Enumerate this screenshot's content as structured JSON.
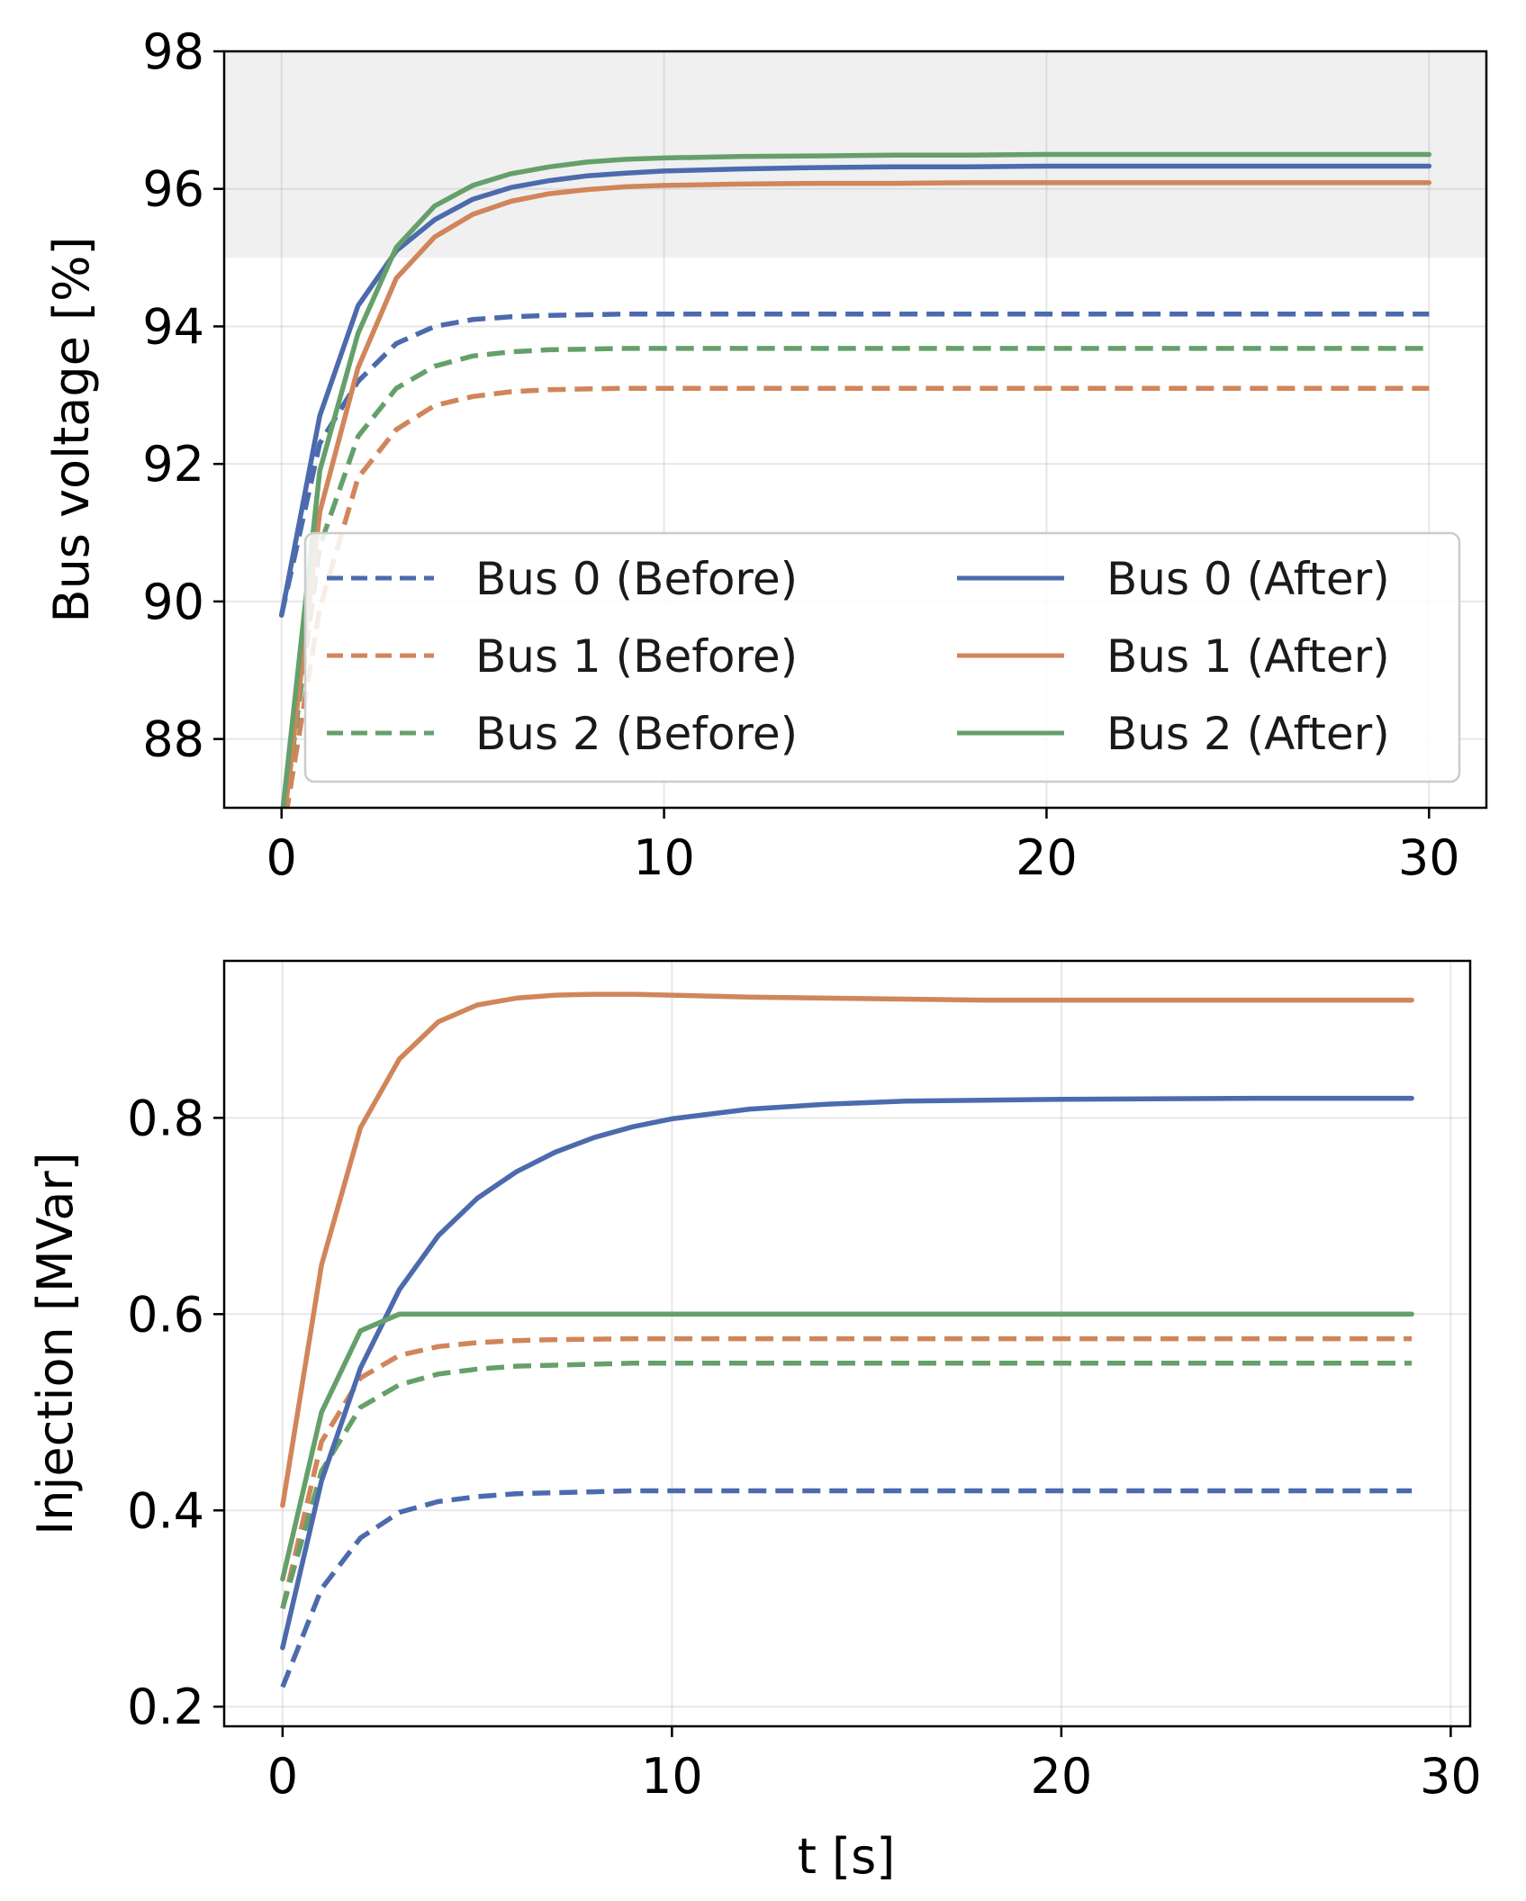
{
  "chart_data": [
    {
      "type": "line",
      "xlabel": "",
      "ylabel": "Bus voltage [%]",
      "xlim": [
        -1.5,
        31.5
      ],
      "ylim": [
        87,
        98
      ],
      "xticks": [
        "0",
        "10",
        "20",
        "30"
      ],
      "yticks": [
        "88",
        "90",
        "92",
        "94",
        "96",
        "98"
      ],
      "grid": true,
      "shaded_band": {
        "from": 95,
        "to": 98,
        "color": "#ebebeb"
      },
      "legend": {
        "placement": "lower-right",
        "columns": 2
      },
      "x": [
        0,
        1,
        2,
        3,
        4,
        5,
        6,
        7,
        8,
        9,
        10,
        12,
        14,
        16,
        18,
        20,
        25,
        30
      ],
      "series": [
        {
          "name": "Bus 0 (Before)",
          "style": "dashed",
          "color": "#4c6aad",
          "values": [
            89.8,
            92.3,
            93.2,
            93.75,
            94.0,
            94.1,
            94.14,
            94.16,
            94.17,
            94.18,
            94.18,
            94.18,
            94.18,
            94.18,
            94.18,
            94.18,
            94.18,
            94.18
          ]
        },
        {
          "name": "Bus 1 (Before)",
          "style": "dashed",
          "color": "#d1855a",
          "values": [
            86.5,
            89.9,
            91.8,
            92.5,
            92.85,
            92.98,
            93.05,
            93.08,
            93.09,
            93.1,
            93.1,
            93.1,
            93.1,
            93.1,
            93.1,
            93.1,
            93.1,
            93.1
          ]
        },
        {
          "name": "Bus 2 (Before)",
          "style": "dashed",
          "color": "#65a06a",
          "values": [
            86.6,
            90.8,
            92.4,
            93.1,
            93.42,
            93.57,
            93.63,
            93.66,
            93.67,
            93.68,
            93.68,
            93.68,
            93.68,
            93.68,
            93.68,
            93.68,
            93.68,
            93.68
          ]
        },
        {
          "name": "Bus 0 (After)",
          "style": "solid",
          "color": "#4c6aad",
          "values": [
            89.8,
            92.7,
            94.3,
            95.1,
            95.55,
            95.85,
            96.02,
            96.12,
            96.19,
            96.23,
            96.26,
            96.29,
            96.31,
            96.32,
            96.32,
            96.33,
            96.33,
            96.33
          ]
        },
        {
          "name": "Bus 1 (After)",
          "style": "solid",
          "color": "#d1855a",
          "values": [
            86.5,
            91.3,
            93.4,
            94.7,
            95.3,
            95.63,
            95.82,
            95.93,
            95.99,
            96.03,
            96.05,
            96.07,
            96.08,
            96.08,
            96.09,
            96.09,
            96.09,
            96.09
          ]
        },
        {
          "name": "Bus 2 (After)",
          "style": "solid",
          "color": "#65a06a",
          "values": [
            86.8,
            91.9,
            93.9,
            95.15,
            95.75,
            96.05,
            96.22,
            96.32,
            96.39,
            96.43,
            96.45,
            96.47,
            96.48,
            96.49,
            96.49,
            96.5,
            96.5,
            96.5
          ]
        }
      ]
    },
    {
      "type": "line",
      "xlabel": "t [s]",
      "ylabel": "Injection [MVar]",
      "xlim": [
        -1.5,
        30.5
      ],
      "ylim": [
        0.18,
        0.96
      ],
      "xticks": [
        "0",
        "10",
        "20",
        "30"
      ],
      "yticks": [
        "0.2",
        "0.4",
        "0.6",
        "0.8"
      ],
      "grid": true,
      "x": [
        0,
        1,
        2,
        3,
        4,
        5,
        6,
        7,
        8,
        9,
        10,
        12,
        14,
        16,
        18,
        20,
        25,
        29
      ],
      "series": [
        {
          "name": "Bus 0 (Before)",
          "style": "dashed",
          "color": "#4c6aad",
          "values": [
            0.22,
            0.32,
            0.372,
            0.398,
            0.409,
            0.414,
            0.417,
            0.418,
            0.419,
            0.42,
            0.42,
            0.42,
            0.42,
            0.42,
            0.42,
            0.42,
            0.42,
            0.42
          ]
        },
        {
          "name": "Bus 1 (Before)",
          "style": "dashed",
          "color": "#d1855a",
          "values": [
            0.3,
            0.47,
            0.535,
            0.558,
            0.567,
            0.571,
            0.573,
            0.574,
            0.5745,
            0.575,
            0.575,
            0.575,
            0.575,
            0.575,
            0.575,
            0.575,
            0.575,
            0.575
          ]
        },
        {
          "name": "Bus 2 (Before)",
          "style": "dashed",
          "color": "#65a06a",
          "values": [
            0.3,
            0.44,
            0.505,
            0.528,
            0.539,
            0.544,
            0.547,
            0.548,
            0.549,
            0.55,
            0.55,
            0.55,
            0.55,
            0.55,
            0.55,
            0.55,
            0.55,
            0.55
          ]
        },
        {
          "name": "Bus 0 (After)",
          "style": "solid",
          "color": "#4c6aad",
          "values": [
            0.26,
            0.43,
            0.545,
            0.625,
            0.68,
            0.718,
            0.745,
            0.765,
            0.78,
            0.791,
            0.799,
            0.809,
            0.814,
            0.817,
            0.818,
            0.819,
            0.82,
            0.82
          ]
        },
        {
          "name": "Bus 1 (After)",
          "style": "solid",
          "color": "#d1855a",
          "values": [
            0.405,
            0.65,
            0.79,
            0.86,
            0.898,
            0.915,
            0.922,
            0.925,
            0.926,
            0.926,
            0.925,
            0.923,
            0.922,
            0.921,
            0.92,
            0.92,
            0.92,
            0.92
          ]
        },
        {
          "name": "Bus 2 (After)",
          "style": "solid",
          "color": "#65a06a",
          "values": [
            0.33,
            0.5,
            0.583,
            0.6,
            0.6,
            0.6,
            0.6,
            0.6,
            0.6,
            0.6,
            0.6,
            0.6,
            0.6,
            0.6,
            0.6,
            0.6,
            0.6,
            0.6
          ]
        }
      ]
    }
  ]
}
